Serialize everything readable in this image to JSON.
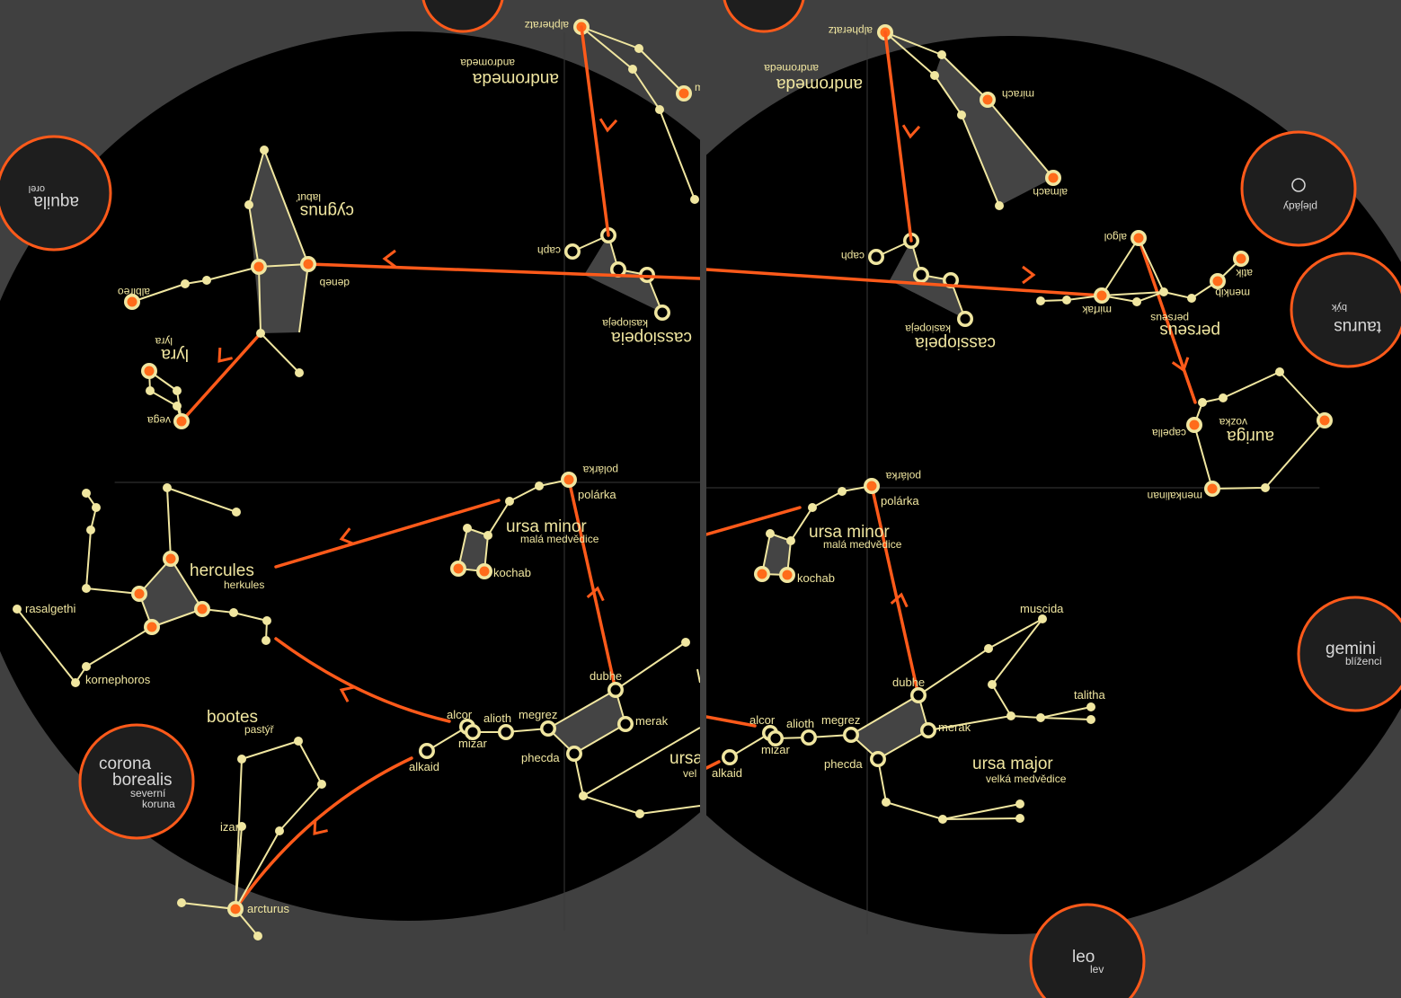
{
  "colors": {
    "background": "#404040",
    "sky": "#000000",
    "line": "#f0e6a0",
    "star_fill": "#ff6b1a",
    "accent": "#ff5a1a",
    "badge_fill": "#1e1e1e",
    "grid": "#3a3a3a"
  },
  "panels": {
    "left": {
      "constellations": [
        {
          "id": "andromeda",
          "name": "andromeda",
          "sub": "andromeda",
          "flipped": true
        },
        {
          "id": "cygnus",
          "name": "cygnus",
          "sub": "labuť",
          "flipped": true
        },
        {
          "id": "lyra",
          "name": "lyra",
          "sub": "lyra",
          "flipped": true
        },
        {
          "id": "cassiopeia",
          "name": "cassiopeia",
          "sub": "kasiopeja",
          "flipped": true
        },
        {
          "id": "ursa-minor",
          "name": "ursa minor",
          "sub": "malá medvědice",
          "flipped": false
        },
        {
          "id": "hercules",
          "name": "hercules",
          "sub": "herkules",
          "flipped": false
        },
        {
          "id": "bootes",
          "name": "bootes",
          "sub": "pastýř",
          "flipped": false
        },
        {
          "id": "ursa-major-partial",
          "name": "ursa",
          "sub": "vel",
          "flipped": false
        }
      ],
      "stars": {
        "alpheratz": "alpheratz",
        "deneb": "deneb",
        "albireo": "albireo",
        "vega": "vega",
        "caph": "caph",
        "polaris_top": "polárka",
        "polaris": "polárka",
        "kochab": "kochab",
        "rasalgethi": "rasalgethi",
        "kornephoros": "kornephoros",
        "alcor": "alcor",
        "alioth": "alioth",
        "megrez": "megrez",
        "mizar": "mizar",
        "alkaid": "alkaid",
        "dubhe": "dubhe",
        "merak": "merak",
        "phecda": "phecda",
        "izar": "izar",
        "arcturus": "arcturus",
        "mirach_partial": "m"
      }
    },
    "right": {
      "constellations": [
        {
          "id": "andromeda",
          "name": "andromeda",
          "sub": "andromeda",
          "flipped": true
        },
        {
          "id": "cassiopeia",
          "name": "cassiopeia",
          "sub": "kasiopeja",
          "flipped": true
        },
        {
          "id": "perseus",
          "name": "perseus",
          "sub": "perseus",
          "flipped": true
        },
        {
          "id": "auriga",
          "name": "auriga",
          "sub": "vozka",
          "flipped": true
        },
        {
          "id": "ursa-minor",
          "name": "ursa minor",
          "sub": "malá medvědice",
          "flipped": false
        },
        {
          "id": "ursa-major",
          "name": "ursa major",
          "sub": "velká medvědice",
          "flipped": false
        }
      ],
      "stars": {
        "alpheratz": "alpheratz",
        "mirach": "mirach",
        "almach": "almach",
        "caph": "caph",
        "algol": "algol",
        "mirfak": "mirfak",
        "menkib": "menkib",
        "atik": "atik",
        "capella": "capella",
        "menkalinan": "menkalinan",
        "polaris_top": "polárka",
        "polaris": "polárka",
        "kochab": "kochab",
        "muscida": "muscida",
        "talitha": "talitha",
        "alcor": "alcor",
        "alioth": "alioth",
        "megrez": "megrez",
        "mizar": "mizar",
        "alkaid": "alkaid",
        "dubhe": "dubhe",
        "merak": "merak",
        "phecda": "phecda"
      }
    }
  },
  "badges": [
    {
      "id": "aquila",
      "name": "aquila",
      "sub": "orel",
      "flipped": true
    },
    {
      "id": "corona-borealis",
      "name_lines": [
        "corona",
        "borealis"
      ],
      "sub_lines": [
        "severní",
        "koruna"
      ],
      "flipped": false
    },
    {
      "id": "pleiades",
      "name": "plejády",
      "flipped": true
    },
    {
      "id": "taurus",
      "name": "taurus",
      "sub": "býk",
      "flipped": true
    },
    {
      "id": "gemini",
      "name": "gemini",
      "sub": "blíženci",
      "flipped": false
    },
    {
      "id": "leo",
      "name": "leo",
      "sub": "lev",
      "flipped": false
    }
  ]
}
